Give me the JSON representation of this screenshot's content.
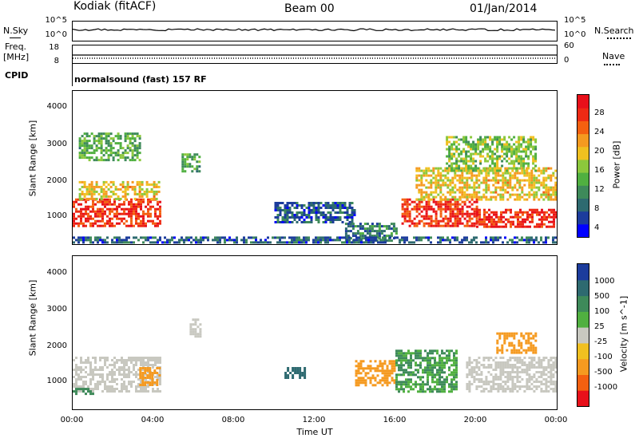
{
  "header": {
    "station": "Kodiak (fitACF)",
    "beam": "Beam 00",
    "date": "01/Jan/2014"
  },
  "nsky_panel": {
    "left_label": "N.Sky",
    "left_ticks": [
      "10^5",
      "10^0"
    ],
    "right_ticks": [
      "10^5",
      "10^0"
    ],
    "right_label": "N.Search"
  },
  "freq_panel": {
    "left_label": "Freq.",
    "left_unit": "[MHz]",
    "left_ticks": [
      "18",
      "8"
    ],
    "right_ticks": [
      "60",
      "0"
    ],
    "right_label": "Nave"
  },
  "cpid_panel": {
    "label": "CPID",
    "text": "normalsound (fast) 157 RF"
  },
  "x_axis": {
    "ticks": [
      "00:00",
      "04:00",
      "08:00",
      "12:00",
      "16:00",
      "20:00",
      "00:00"
    ],
    "label": "Time UT"
  },
  "colors": {
    "power_scale": [
      "#0000ff",
      "#1c3c9c",
      "#2e6a70",
      "#3e8a5a",
      "#50b040",
      "#8cc83c",
      "#f0c020",
      "#f59a20",
      "#f46010",
      "#ee2a14",
      "#e8101a"
    ],
    "velocity_scale": [
      "#e8101a",
      "#f46010",
      "#f59a20",
      "#f0c020",
      "#c8c8c0",
      "#50b040",
      "#3e8a5a",
      "#2e6a70",
      "#1c3c9c"
    ]
  },
  "chart_data": [
    {
      "type": "heatmap",
      "name": "power",
      "ylabel": "Slant Range [km]",
      "yticks": [
        "4000",
        "3000",
        "2000",
        "1000"
      ],
      "ylim": [
        180,
        4600
      ],
      "xlim_hours": [
        0,
        24
      ],
      "colorbar": {
        "label": "Power [dB]",
        "ticks": [
          "28",
          "24",
          "20",
          "16",
          "12",
          "8",
          "4"
        ],
        "range": [
          0,
          30
        ]
      },
      "regions": [
        {
          "t": [
            0.0,
            4.3
          ],
          "r": [
            700,
            1500
          ],
          "value": 26
        },
        {
          "t": [
            0.3,
            4.3
          ],
          "r": [
            1500,
            2000
          ],
          "value": 18
        },
        {
          "t": [
            0.3,
            3.3
          ],
          "r": [
            2600,
            3400
          ],
          "value": 12
        },
        {
          "t": [
            5.4,
            6.3
          ],
          "r": [
            2300,
            2800
          ],
          "value": 12
        },
        {
          "t": [
            10.0,
            14.0
          ],
          "r": [
            800,
            1400
          ],
          "value": 6
        },
        {
          "t": [
            13.5,
            16.0
          ],
          "r": [
            300,
            800
          ],
          "value": 8
        },
        {
          "t": [
            16.3,
            20.0
          ],
          "r": [
            700,
            1500
          ],
          "value": 26
        },
        {
          "t": [
            17.0,
            24.0
          ],
          "r": [
            1500,
            2400
          ],
          "value": 18
        },
        {
          "t": [
            20.0,
            24.0
          ],
          "r": [
            700,
            1200
          ],
          "value": 26
        },
        {
          "t": [
            18.5,
            23.0
          ],
          "r": [
            2300,
            3300
          ],
          "value": 14
        },
        {
          "t": [
            0.0,
            24.0
          ],
          "r": [
            200,
            400
          ],
          "value": 6
        }
      ]
    },
    {
      "type": "heatmap",
      "name": "velocity",
      "ylabel": "Slant Range [km]",
      "yticks": [
        "4000",
        "3000",
        "2000",
        "1000"
      ],
      "ylim": [
        180,
        4600
      ],
      "xlim_hours": [
        0,
        24
      ],
      "colorbar": {
        "label": "Velocity [m s^-1]",
        "ticks": [
          "1000",
          "500",
          "100",
          "25",
          "-25",
          "-100",
          "-500",
          "-1000"
        ]
      },
      "regions": [
        {
          "t": [
            0.0,
            4.3
          ],
          "r": [
            700,
            1700
          ],
          "value": 0
        },
        {
          "t": [
            3.3,
            4.3
          ],
          "r": [
            900,
            1400
          ],
          "value": -300
        },
        {
          "t": [
            0.0,
            1.0
          ],
          "r": [
            600,
            800
          ],
          "value": 200
        },
        {
          "t": [
            5.8,
            6.3
          ],
          "r": [
            2300,
            2800
          ],
          "value": 0
        },
        {
          "t": [
            14.0,
            16.0
          ],
          "r": [
            900,
            1600
          ],
          "value": -300
        },
        {
          "t": [
            16.0,
            19.0
          ],
          "r": [
            700,
            1900
          ],
          "value": 100
        },
        {
          "t": [
            19.5,
            24.0
          ],
          "r": [
            700,
            1700
          ],
          "value": 0
        },
        {
          "t": [
            21.0,
            23.0
          ],
          "r": [
            1800,
            2400
          ],
          "value": -150
        },
        {
          "t": [
            10.5,
            11.5
          ],
          "r": [
            1100,
            1400
          ],
          "value": 600
        }
      ]
    }
  ]
}
